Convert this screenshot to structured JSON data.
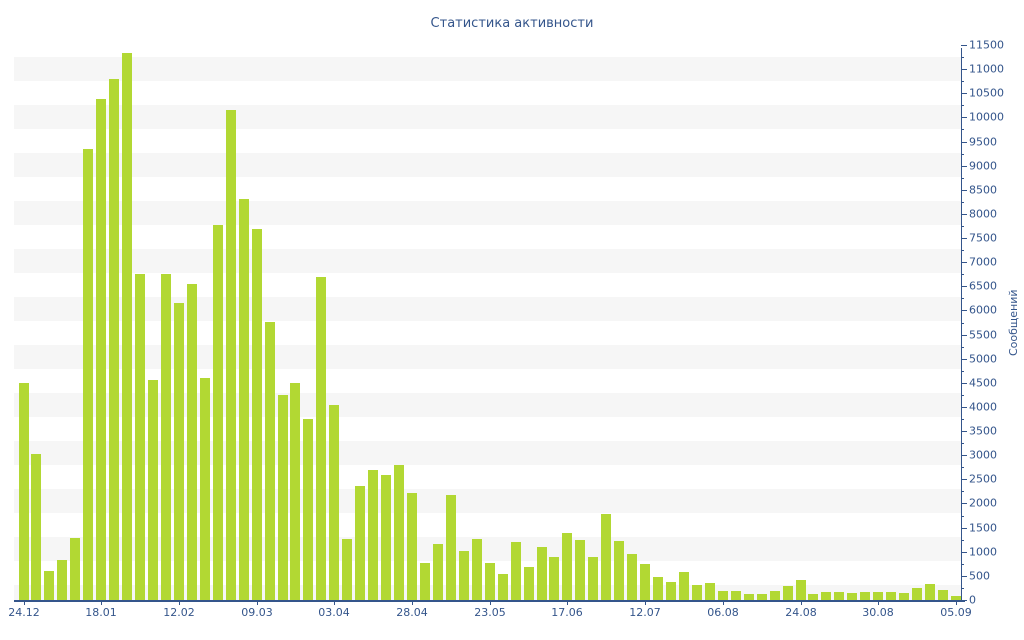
{
  "title": "Статистика активности",
  "y_axis_label": "Сообщений",
  "colors": {
    "bar": "#b2d833",
    "axis": "#34558b",
    "stripe": "#f6f6f6",
    "background": "#ffffff"
  },
  "chart_data": {
    "type": "bar",
    "title": "Статистика активности",
    "xlabel": "",
    "ylabel": "Сообщений",
    "ylim": [
      0,
      11500
    ],
    "y_tick_step": 500,
    "grid": "horizontal-stripes",
    "legend_position": "none",
    "y_ticks": [
      0,
      500,
      1000,
      1500,
      2000,
      2500,
      3000,
      3500,
      4000,
      4500,
      5000,
      5500,
      6000,
      6500,
      7000,
      7500,
      8000,
      8500,
      9000,
      9500,
      10000,
      10500,
      11000,
      11500
    ],
    "x_tick_labels": [
      "24.12",
      "18.01",
      "12.02",
      "09.03",
      "03.04",
      "28.04",
      "23.05",
      "17.06",
      "12.07",
      "06.08",
      "24.08",
      "30.08",
      "05.09"
    ],
    "x_tick_bar_indices": [
      0,
      6,
      12,
      18,
      24,
      30,
      36,
      42,
      48,
      54,
      60,
      66,
      72
    ],
    "series": [
      {
        "name": "Сообщений",
        "values": [
          4490,
          3020,
          610,
          820,
          1290,
          9350,
          10380,
          10790,
          11340,
          6760,
          4560,
          6760,
          6150,
          6550,
          4600,
          7780,
          10150,
          8310,
          7690,
          5750,
          4250,
          4500,
          3750,
          6700,
          4050,
          1270,
          2360,
          2700,
          2600,
          2790,
          2210,
          770,
          1150,
          2180,
          1025,
          1255,
          770,
          545,
          1200,
          675,
          1095,
          885,
          1390,
          1240,
          895,
          1790,
          1220,
          960,
          755,
          475,
          375,
          580,
          305,
          350,
          195,
          180,
          120,
          125,
          190,
          295,
          420,
          120,
          175,
          160,
          140,
          160,
          175,
          160,
          140,
          255,
          330,
          210,
          90
        ]
      }
    ]
  }
}
